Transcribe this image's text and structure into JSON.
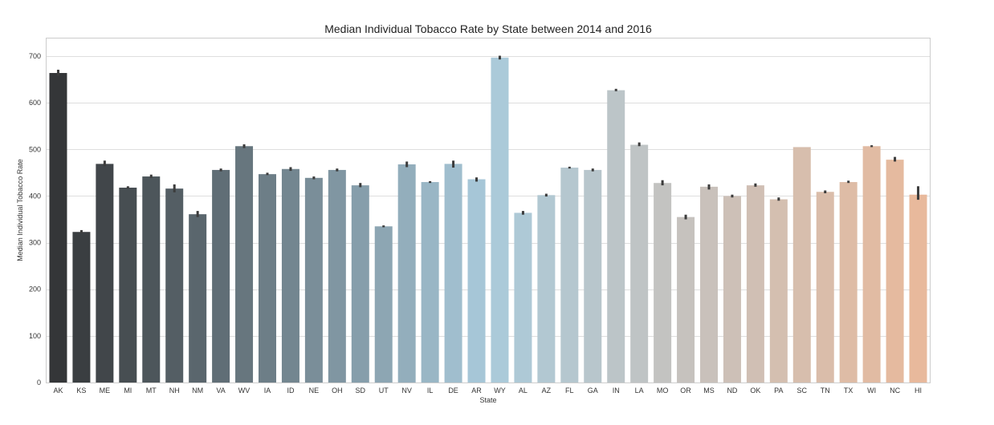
{
  "chart_data": {
    "type": "bar",
    "title": "Median Individual Tobacco Rate by State between 2014 and 2016",
    "xlabel": "State",
    "ylabel": "Median Individual Tobacco Rate",
    "ylim": [
      0,
      738
    ],
    "yticks": [
      0,
      100,
      200,
      300,
      400,
      500,
      600,
      700
    ],
    "grid": true,
    "categories": [
      "AK",
      "KS",
      "ME",
      "MI",
      "MT",
      "NH",
      "NM",
      "VA",
      "WV",
      "IA",
      "ID",
      "NE",
      "OH",
      "SD",
      "UT",
      "NV",
      "IL",
      "DE",
      "AR",
      "WY",
      "AL",
      "AZ",
      "FL",
      "GA",
      "IN",
      "LA",
      "MO",
      "OR",
      "MS",
      "ND",
      "OK",
      "PA",
      "SC",
      "TN",
      "TX",
      "WI",
      "NC",
      "HI"
    ],
    "values": [
      664,
      323,
      469,
      418,
      442,
      416,
      361,
      456,
      507,
      447,
      458,
      439,
      456,
      423,
      335,
      468,
      430,
      469,
      436,
      697,
      364,
      402,
      461,
      456,
      627,
      510,
      428,
      355,
      420,
      400,
      423,
      393,
      505,
      409,
      430,
      507,
      478,
      403
    ],
    "error_low": [
      658,
      321,
      464,
      416,
      439,
      408,
      355,
      453,
      503,
      445,
      454,
      436,
      453,
      419,
      333,
      462,
      428,
      461,
      431,
      693,
      360,
      399,
      459,
      453,
      625,
      507,
      423,
      350,
      414,
      397,
      420,
      390,
      505,
      406,
      428,
      505,
      474,
      392
    ],
    "error_high": [
      671,
      327,
      476,
      421,
      446,
      425,
      368,
      459,
      511,
      450,
      462,
      442,
      459,
      428,
      337,
      474,
      432,
      476,
      440,
      701,
      368,
      405,
      463,
      459,
      630,
      515,
      434,
      360,
      425,
      403,
      427,
      397,
      505,
      412,
      433,
      509,
      484,
      421
    ],
    "colors": {
      "gradient_start": "#343638",
      "gradient_mid": "#a9cadb",
      "gradient_end": "#e8b99c",
      "error_bar": "#3c3c3c",
      "grid": "#dedede",
      "frame": "#cccccc"
    }
  }
}
